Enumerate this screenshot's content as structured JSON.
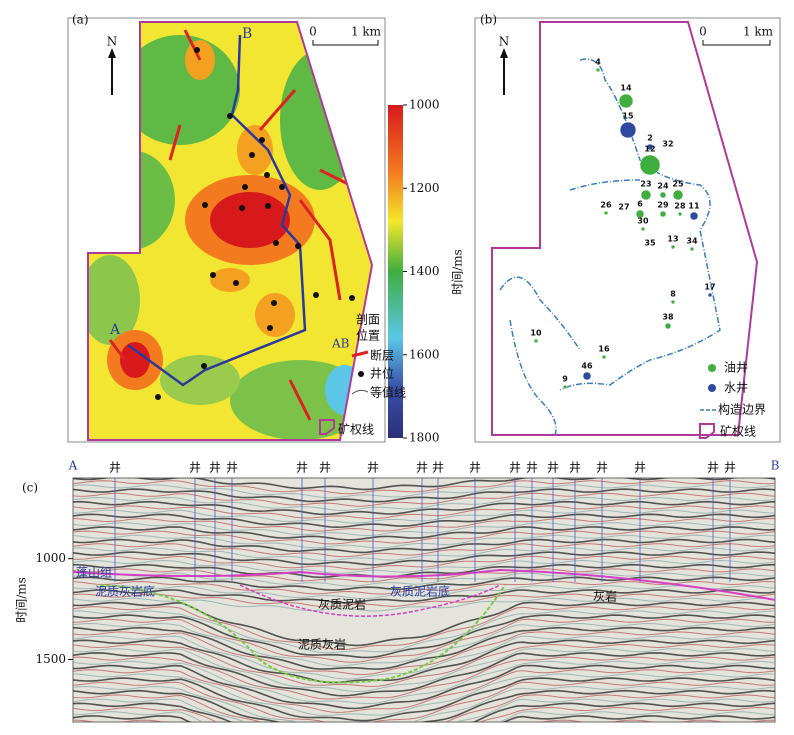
{
  "panel_a": {
    "label": "(a)",
    "north": "N",
    "scale_start": "0",
    "scale_end": "1 km",
    "point_a": "A",
    "point_b": "B",
    "colorbar": {
      "range": [
        1000,
        1800
      ],
      "ticks": [
        1000,
        1200,
        1400,
        1600,
        1800
      ],
      "label": "时间/ms"
    },
    "legend": {
      "section_line": "AB",
      "section_1": "剖面",
      "section_2": "位置",
      "fault": "断层",
      "well": "井位",
      "contour": "等值线",
      "boundary": "矿权线"
    }
  },
  "panel_b": {
    "label": "(b)",
    "north": "N",
    "scale_start": "0",
    "scale_end": "1 km",
    "wells": [
      {
        "label": "4",
        "color": "#3fae3f"
      },
      {
        "label": "14",
        "color": "#3fae3f"
      },
      {
        "label": "15",
        "color": "#2e4aa0"
      },
      {
        "label": "2",
        "color": "#2e4aa0"
      },
      {
        "label": "32",
        "color": "#3fae3f"
      },
      {
        "label": "12",
        "color": "#3fae3f"
      },
      {
        "label": "23",
        "color": "#3fae3f"
      },
      {
        "label": "24",
        "color": "#3fae3f"
      },
      {
        "label": "25",
        "color": "#3fae3f"
      },
      {
        "label": "26",
        "color": "#3fae3f"
      },
      {
        "label": "27",
        "color": "#3fae3f"
      },
      {
        "label": "6",
        "color": "#3fae3f"
      },
      {
        "label": "29",
        "color": "#3fae3f"
      },
      {
        "label": "28",
        "color": "#3fae3f"
      },
      {
        "label": "11",
        "color": "#2e4aa0"
      },
      {
        "label": "30",
        "color": "#3fae3f"
      },
      {
        "label": "35",
        "color": "#3fae3f"
      },
      {
        "label": "13",
        "color": "#3fae3f"
      },
      {
        "label": "34",
        "color": "#3fae3f"
      },
      {
        "label": "8",
        "color": "#3fae3f"
      },
      {
        "label": "17",
        "color": "#2e4aa0"
      },
      {
        "label": "38",
        "color": "#3fae3f"
      },
      {
        "label": "10",
        "color": "#3fae3f"
      },
      {
        "label": "16",
        "color": "#3fae3f"
      },
      {
        "label": "46",
        "color": "#2e4aa0"
      },
      {
        "label": "9",
        "color": "#3fae3f"
      }
    ],
    "legend": {
      "oil": "油井",
      "oil_color": "#3fae3f",
      "water": "水井",
      "water_color": "#2e4aa0",
      "structure": "构造边界",
      "boundary": "矿权线"
    }
  },
  "panel_c": {
    "label": "(c)",
    "point_a": "A",
    "point_b": "B",
    "axis_label": "时间/ms",
    "ylim": [
      600,
      1810
    ],
    "yticks": [
      1000,
      1500
    ],
    "wells": [
      "井",
      "井",
      "井",
      "井",
      "井",
      "井",
      "井",
      "井",
      "井",
      "井",
      "井",
      "井",
      "井",
      "井",
      "井",
      "井",
      "井",
      "井"
    ],
    "annotations": {
      "formation": "蓬山组",
      "marl_base": "泥质灰岩底",
      "calc_mudstone": "灰质泥岩",
      "calc_mudstone_base": "灰质泥岩底",
      "limestone": "灰岩",
      "marl": "泥质灰岩"
    }
  }
}
